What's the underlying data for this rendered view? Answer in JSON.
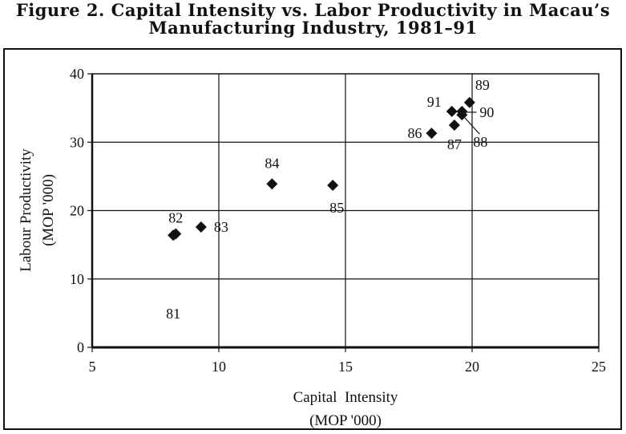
{
  "title_line1": "Figure 2. Capital Intensity vs. Labor Productivity in Macau’s",
  "title_line2": "Manufacturing Industry, 1981–91",
  "chart_data": {
    "type": "scatter",
    "xlabel_line1": "Capital  Intensity",
    "xlabel_line2": "(MOP '000)",
    "ylabel_line1": "Labour Productivity",
    "ylabel_line2": "(MOP '000)",
    "xlim": [
      5,
      25
    ],
    "ylim": [
      0,
      40
    ],
    "xticks": [
      5,
      10,
      15,
      20,
      25
    ],
    "yticks": [
      0,
      10,
      20,
      30,
      40
    ],
    "grid": true,
    "marker": "diamond",
    "points": [
      {
        "label": "81",
        "x": 8.2,
        "y": 16.4
      },
      {
        "label": "82",
        "x": 8.3,
        "y": 16.6
      },
      {
        "label": "83",
        "x": 9.3,
        "y": 17.6
      },
      {
        "label": "84",
        "x": 12.1,
        "y": 23.9
      },
      {
        "label": "85",
        "x": 14.5,
        "y": 23.7
      },
      {
        "label": "86",
        "x": 18.4,
        "y": 31.3
      },
      {
        "label": "87",
        "x": 19.3,
        "y": 32.5
      },
      {
        "label": "88",
        "x": 19.6,
        "y": 34.0
      },
      {
        "label": "89",
        "x": 19.9,
        "y": 35.8
      },
      {
        "label": "90",
        "x": 19.6,
        "y": 34.5
      },
      {
        "label": "91",
        "x": 19.2,
        "y": 34.5
      }
    ]
  }
}
